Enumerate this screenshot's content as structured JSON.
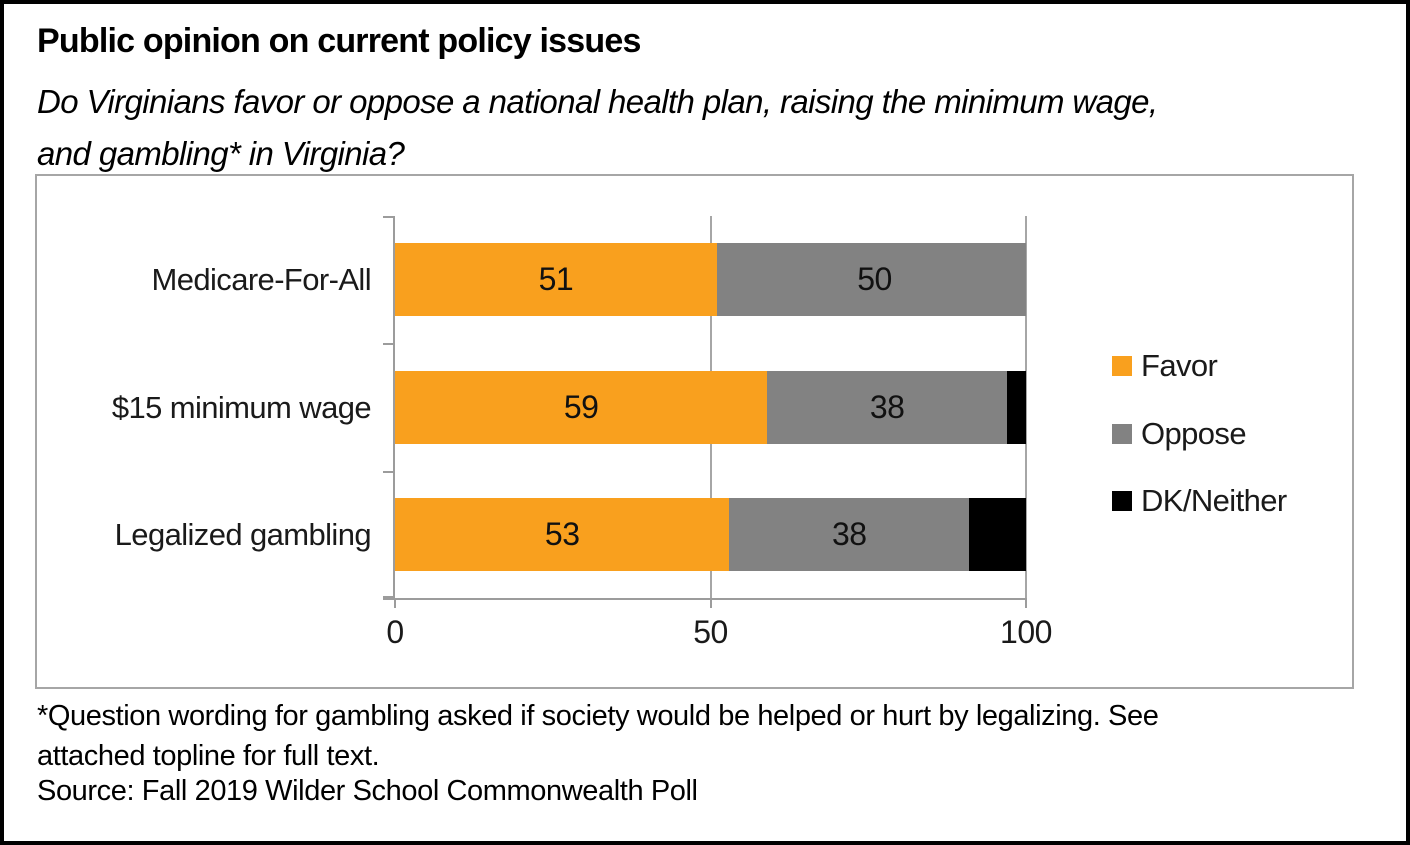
{
  "header": {
    "title": "Public opinion on current policy issues",
    "subtitle": "Do Virginians favor or oppose a national health plan, raising the minimum wage,\nand gambling* in Virginia?"
  },
  "chart_data": {
    "type": "bar",
    "orientation": "horizontal-stacked",
    "title": "Public opinion on current policy issues",
    "categories": [
      "Medicare-For-All",
      "$15 minimum wage",
      "Legalized gambling"
    ],
    "series": [
      {
        "name": "Favor",
        "color": "#F9A01E",
        "values": [
          51,
          59,
          53
        ],
        "show_labels": true
      },
      {
        "name": "Oppose",
        "color": "#828282",
        "values": [
          50,
          38,
          38
        ],
        "show_labels": true
      },
      {
        "name": "DK/Neither",
        "color": "#000000",
        "values": [
          0,
          3,
          9
        ],
        "show_labels": false
      }
    ],
    "xlim": [
      0,
      100
    ],
    "x_ticks": [
      0,
      50,
      100
    ],
    "grid": "vertical-gridlines-at-50-and-100",
    "legend_position": "right-middle",
    "axis_color": "#A6A6A6"
  },
  "footer": {
    "footnote": "*Question wording for gambling asked if society would be helped or hurt by legalizing. See\nattached topline for full text.",
    "source": "Source: Fall 2019 Wilder School Commonwealth Poll"
  }
}
